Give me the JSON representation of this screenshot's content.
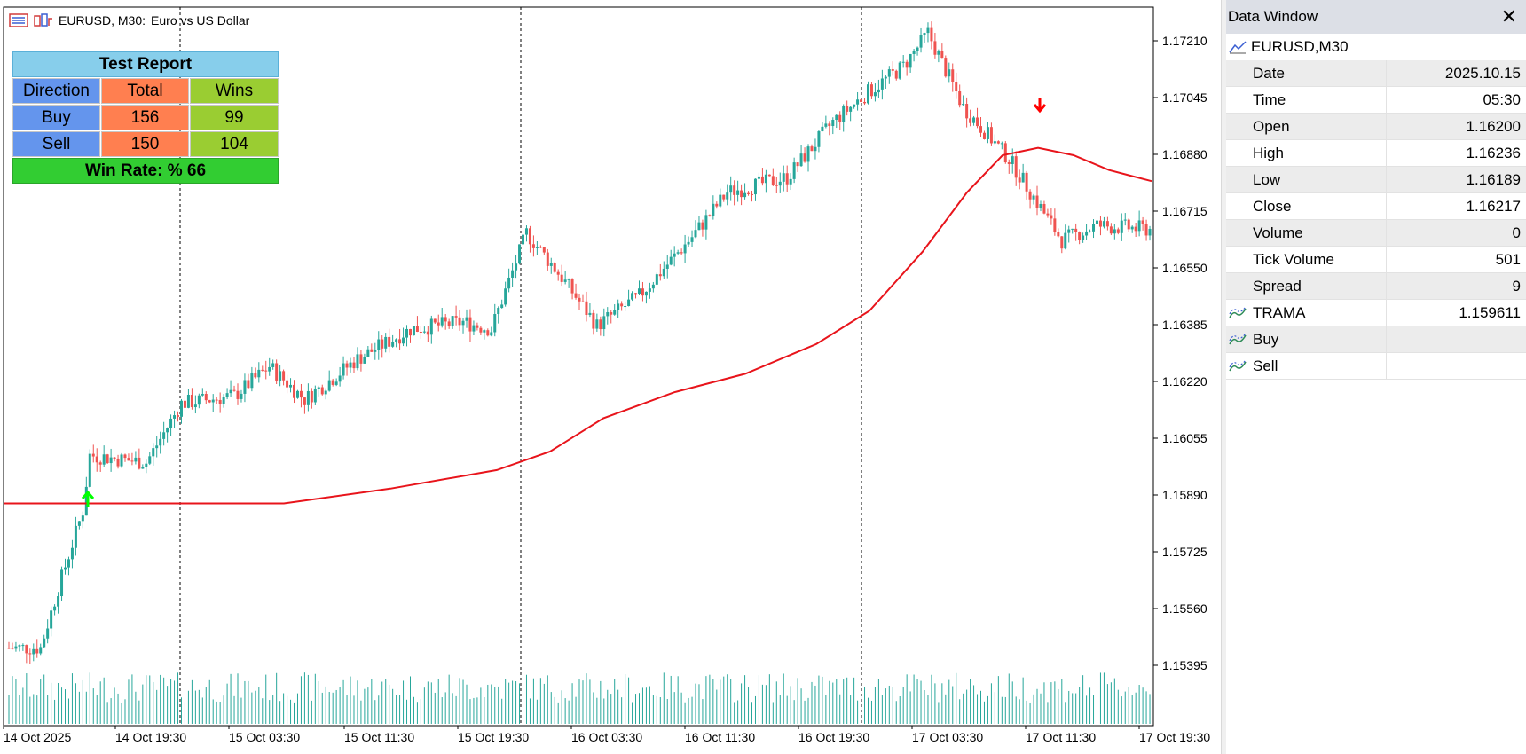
{
  "chart": {
    "symbol": "EURUSD, M30:",
    "description": "Euro vs US Dollar",
    "price_ticks": [
      "1.17210",
      "1.17045",
      "1.16880",
      "1.16715",
      "1.16550",
      "1.16385",
      "1.16220",
      "1.16055",
      "1.15890",
      "1.15725",
      "1.15560",
      "1.15395"
    ],
    "time_ticks": [
      "14 Oct 2025",
      "14 Oct 19:30",
      "15 Oct 03:30",
      "15 Oct 11:30",
      "15 Oct 19:30",
      "16 Oct 03:30",
      "16 Oct 11:30",
      "16 Oct 19:30",
      "17 Oct 03:30",
      "17 Oct 11:30",
      "17 Oct 19:30"
    ],
    "colors": {
      "bull": "#26a69a",
      "bear": "#ef5350",
      "ma": "#e8141b",
      "buy_arrow": "#00ff00",
      "sell_arrow": "#ff0000",
      "volume": "#26a69a"
    }
  },
  "report": {
    "title": "Test Report",
    "headers": {
      "direction": "Direction",
      "total": "Total",
      "wins": "Wins"
    },
    "rows": [
      {
        "direction": "Buy",
        "total": "156",
        "wins": "99"
      },
      {
        "direction": "Sell",
        "total": "150",
        "wins": "104"
      }
    ],
    "footer": "Win Rate: %  66"
  },
  "data_window": {
    "title": "Data Window",
    "symbol": "EURUSD,M30",
    "rows": [
      {
        "label": "Date",
        "value": "2025.10.15"
      },
      {
        "label": "Time",
        "value": "05:30"
      },
      {
        "label": "Open",
        "value": "1.16200"
      },
      {
        "label": "High",
        "value": "1.16236"
      },
      {
        "label": "Low",
        "value": "1.16189"
      },
      {
        "label": "Close",
        "value": "1.16217"
      },
      {
        "label": "Volume",
        "value": "0"
      },
      {
        "label": "Tick Volume",
        "value": "501"
      },
      {
        "label": "Spread",
        "value": "9"
      }
    ],
    "indicators": [
      {
        "label": "TRAMA",
        "value": "1.159611"
      },
      {
        "label": "Buy",
        "value": ""
      },
      {
        "label": "Sell",
        "value": ""
      }
    ]
  }
}
